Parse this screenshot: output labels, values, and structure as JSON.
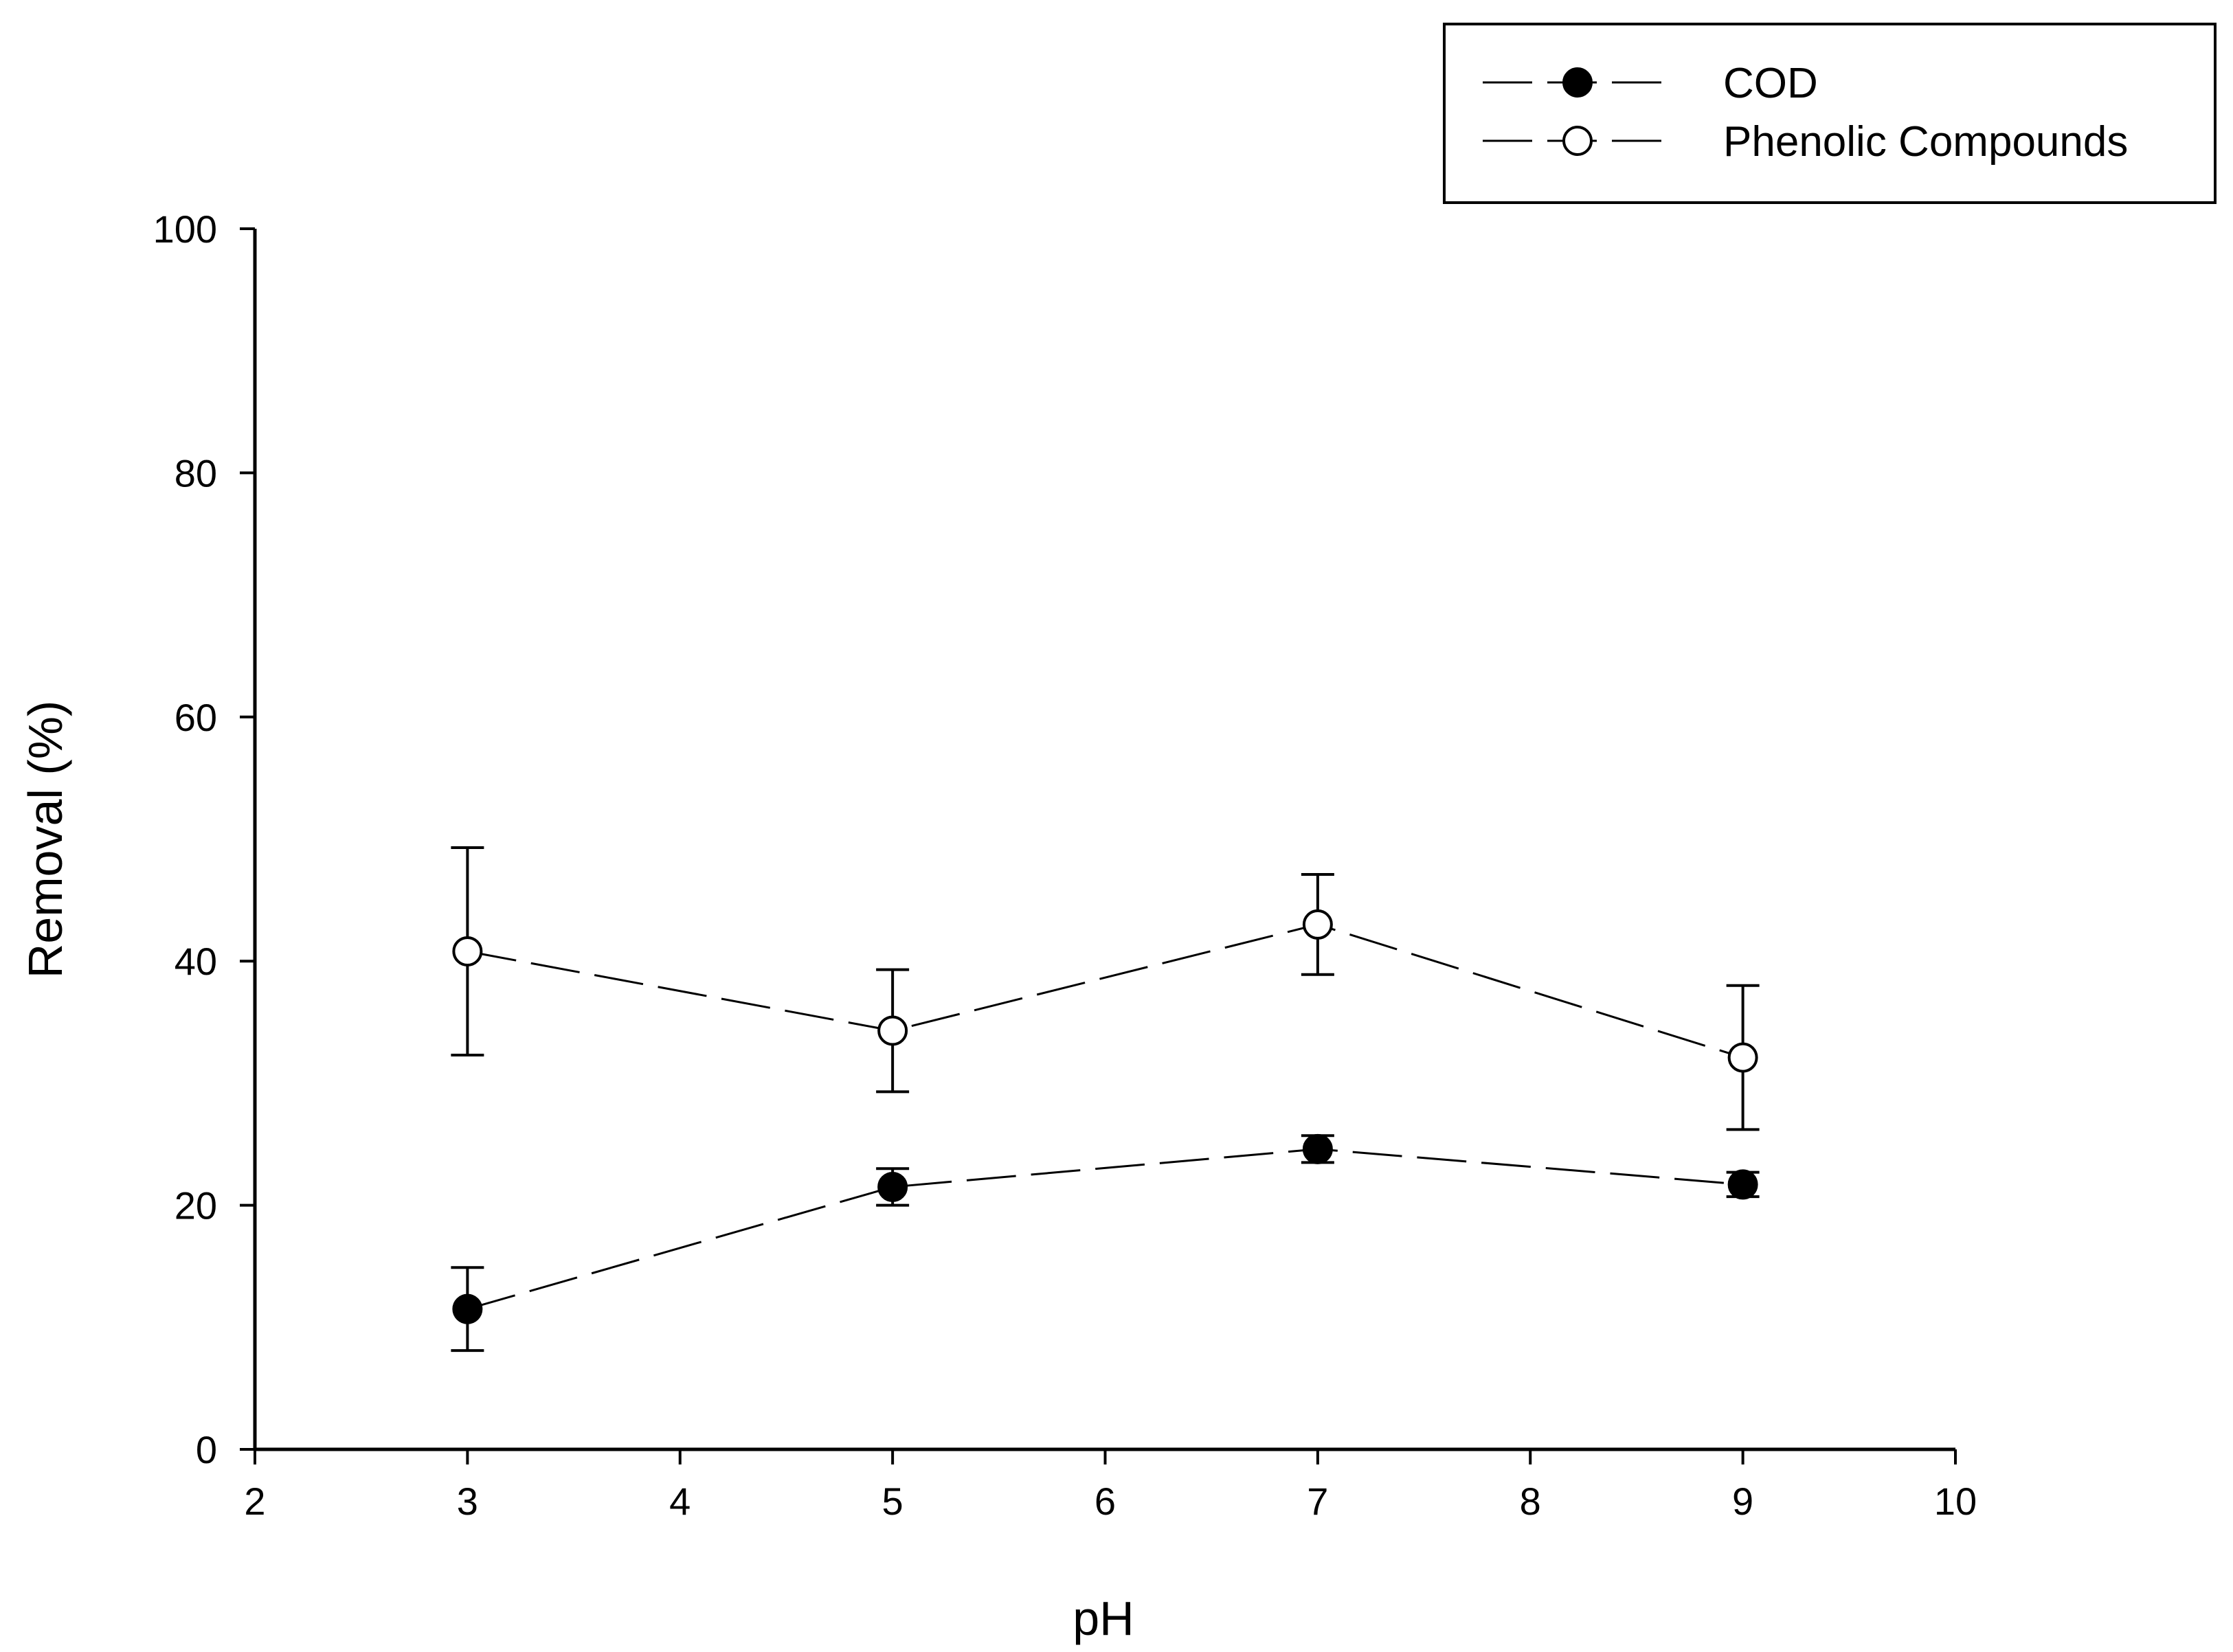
{
  "chart_data": {
    "type": "line",
    "title": "",
    "xlabel": "pH",
    "ylabel": "Removal (%)",
    "xlim": [
      2,
      10
    ],
    "ylim": [
      0,
      100
    ],
    "x_ticks": [
      2,
      3,
      4,
      5,
      6,
      7,
      8,
      9,
      10
    ],
    "y_ticks": [
      0,
      20,
      40,
      60,
      80,
      100
    ],
    "x_tick_labels": [
      "2",
      "3",
      "4",
      "5",
      "6",
      "7",
      "8",
      "9",
      "10"
    ],
    "y_tick_labels": [
      "0",
      "20",
      "40",
      "60",
      "80",
      "100"
    ],
    "grid": false,
    "legend_position": "top-right",
    "series": [
      {
        "name": "COD",
        "marker": "filled-circle",
        "line_style": "dashed",
        "color": "#000000",
        "x": [
          3,
          5,
          7,
          9
        ],
        "y": [
          11.5,
          21.5,
          24.6,
          21.7
        ],
        "error": [
          3.4,
          1.5,
          1.1,
          1.0
        ]
      },
      {
        "name": "Phenolic Compounds",
        "marker": "open-circle",
        "line_style": "dashed",
        "color": "#000000",
        "x": [
          3,
          5,
          7,
          9
        ],
        "y": [
          40.8,
          34.3,
          43.0,
          32.1
        ],
        "error": [
          8.5,
          5.0,
          4.1,
          5.9
        ]
      }
    ]
  }
}
